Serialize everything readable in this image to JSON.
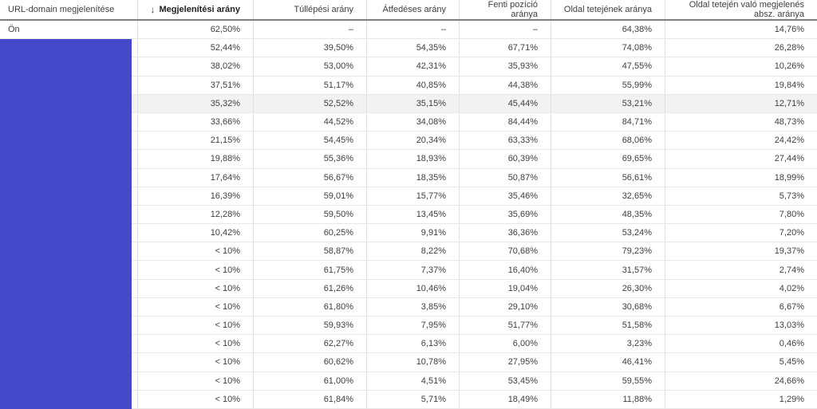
{
  "colors": {
    "redaction_blue": "#4349c8",
    "header_border": "#7e7e7e",
    "row_border": "#e8e8e8",
    "column_border": "#e0e0e0",
    "highlight_row_bg": "#f2f2f2",
    "text": "#3c4043"
  },
  "table": {
    "sort_icon": "↓",
    "sorted_column_index": 1,
    "highlighted_row_index": 4,
    "columns": [
      {
        "label": "URL-domain megjelenítése"
      },
      {
        "label": "Megjelenítési arány"
      },
      {
        "label": "Túllépési arány"
      },
      {
        "label": "Átfedéses arány"
      },
      {
        "label": "Fenti pozíció aránya"
      },
      {
        "label": "Oldal tetejének aránya"
      },
      {
        "label": "Oldal tetején való megjelenés absz. aránya"
      }
    ],
    "rows": [
      [
        "Ön",
        "62,50%",
        "–",
        "–",
        "–",
        "64,38%",
        "14,76%"
      ],
      [
        "",
        "52,44%",
        "39,50%",
        "54,35%",
        "67,71%",
        "74,08%",
        "26,28%"
      ],
      [
        "",
        "38,02%",
        "53,00%",
        "42,31%",
        "35,93%",
        "47,55%",
        "10,26%"
      ],
      [
        "",
        "37,51%",
        "51,17%",
        "40,85%",
        "44,38%",
        "55,99%",
        "19,84%"
      ],
      [
        "",
        "35,32%",
        "52,52%",
        "35,15%",
        "45,44%",
        "53,21%",
        "12,71%"
      ],
      [
        "",
        "33,66%",
        "44,52%",
        "34,08%",
        "84,44%",
        "84,71%",
        "48,73%"
      ],
      [
        "",
        "21,15%",
        "54,45%",
        "20,34%",
        "63,33%",
        "68,06%",
        "24,42%"
      ],
      [
        "",
        "19,88%",
        "55,36%",
        "18,93%",
        "60,39%",
        "69,65%",
        "27,44%"
      ],
      [
        "",
        "17,64%",
        "56,67%",
        "18,35%",
        "50,87%",
        "56,61%",
        "18,99%"
      ],
      [
        "",
        "16,39%",
        "59,01%",
        "15,77%",
        "35,46%",
        "32,65%",
        "5,73%"
      ],
      [
        "",
        "12,28%",
        "59,50%",
        "13,45%",
        "35,69%",
        "48,35%",
        "7,80%"
      ],
      [
        "",
        "10,42%",
        "60,25%",
        "9,91%",
        "36,36%",
        "53,24%",
        "7,20%"
      ],
      [
        "",
        "< 10%",
        "58,87%",
        "8,22%",
        "70,68%",
        "79,23%",
        "19,37%"
      ],
      [
        "",
        "< 10%",
        "61,75%",
        "7,37%",
        "16,40%",
        "31,57%",
        "2,74%"
      ],
      [
        "",
        "< 10%",
        "61,26%",
        "10,46%",
        "19,04%",
        "26,30%",
        "4,02%"
      ],
      [
        "",
        "< 10%",
        "61,80%",
        "3,85%",
        "29,10%",
        "30,68%",
        "6,67%"
      ],
      [
        "",
        "< 10%",
        "59,93%",
        "7,95%",
        "51,77%",
        "51,58%",
        "13,03%"
      ],
      [
        "",
        "< 10%",
        "62,27%",
        "6,13%",
        "6,00%",
        "3,23%",
        "0,46%"
      ],
      [
        "",
        "< 10%",
        "60,62%",
        "10,78%",
        "27,95%",
        "46,41%",
        "5,45%"
      ],
      [
        "",
        "< 10%",
        "61,00%",
        "4,51%",
        "53,45%",
        "59,55%",
        "24,66%"
      ],
      [
        "",
        "< 10%",
        "61,84%",
        "5,71%",
        "18,49%",
        "11,88%",
        "1,29%"
      ]
    ]
  }
}
